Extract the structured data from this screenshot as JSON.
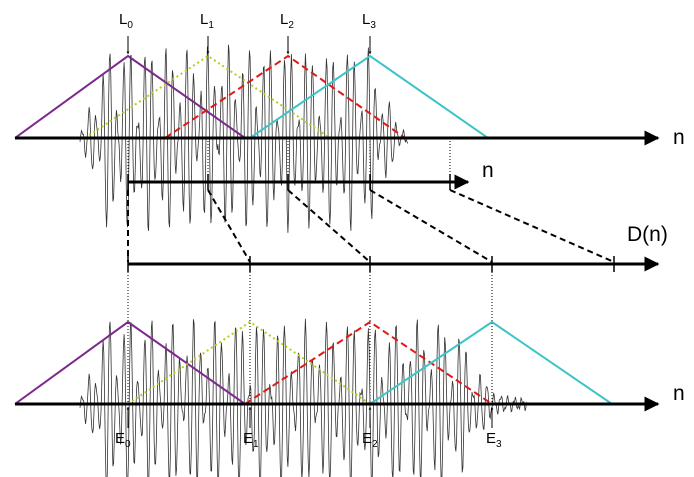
{
  "colors": {
    "L0": "#7b2a8c",
    "L1": "#b8cc1e",
    "L2": "#e01818",
    "L3": "#3cc4c8",
    "axis": "#000000",
    "waveform": "#333333"
  },
  "top": {
    "axis_label": "n",
    "markers": [
      {
        "base": "L",
        "sub": "0"
      },
      {
        "base": "L",
        "sub": "1"
      },
      {
        "base": "L",
        "sub": "2"
      },
      {
        "base": "L",
        "sub": "3"
      }
    ]
  },
  "middle": {
    "axis1_label": "n",
    "axis2_label": "D(n)"
  },
  "bottom": {
    "axis_label": "n",
    "markers": [
      {
        "base": "E",
        "sub": "0"
      },
      {
        "base": "E",
        "sub": "1"
      },
      {
        "base": "E",
        "sub": "2"
      },
      {
        "base": "E",
        "sub": "3"
      }
    ]
  }
}
